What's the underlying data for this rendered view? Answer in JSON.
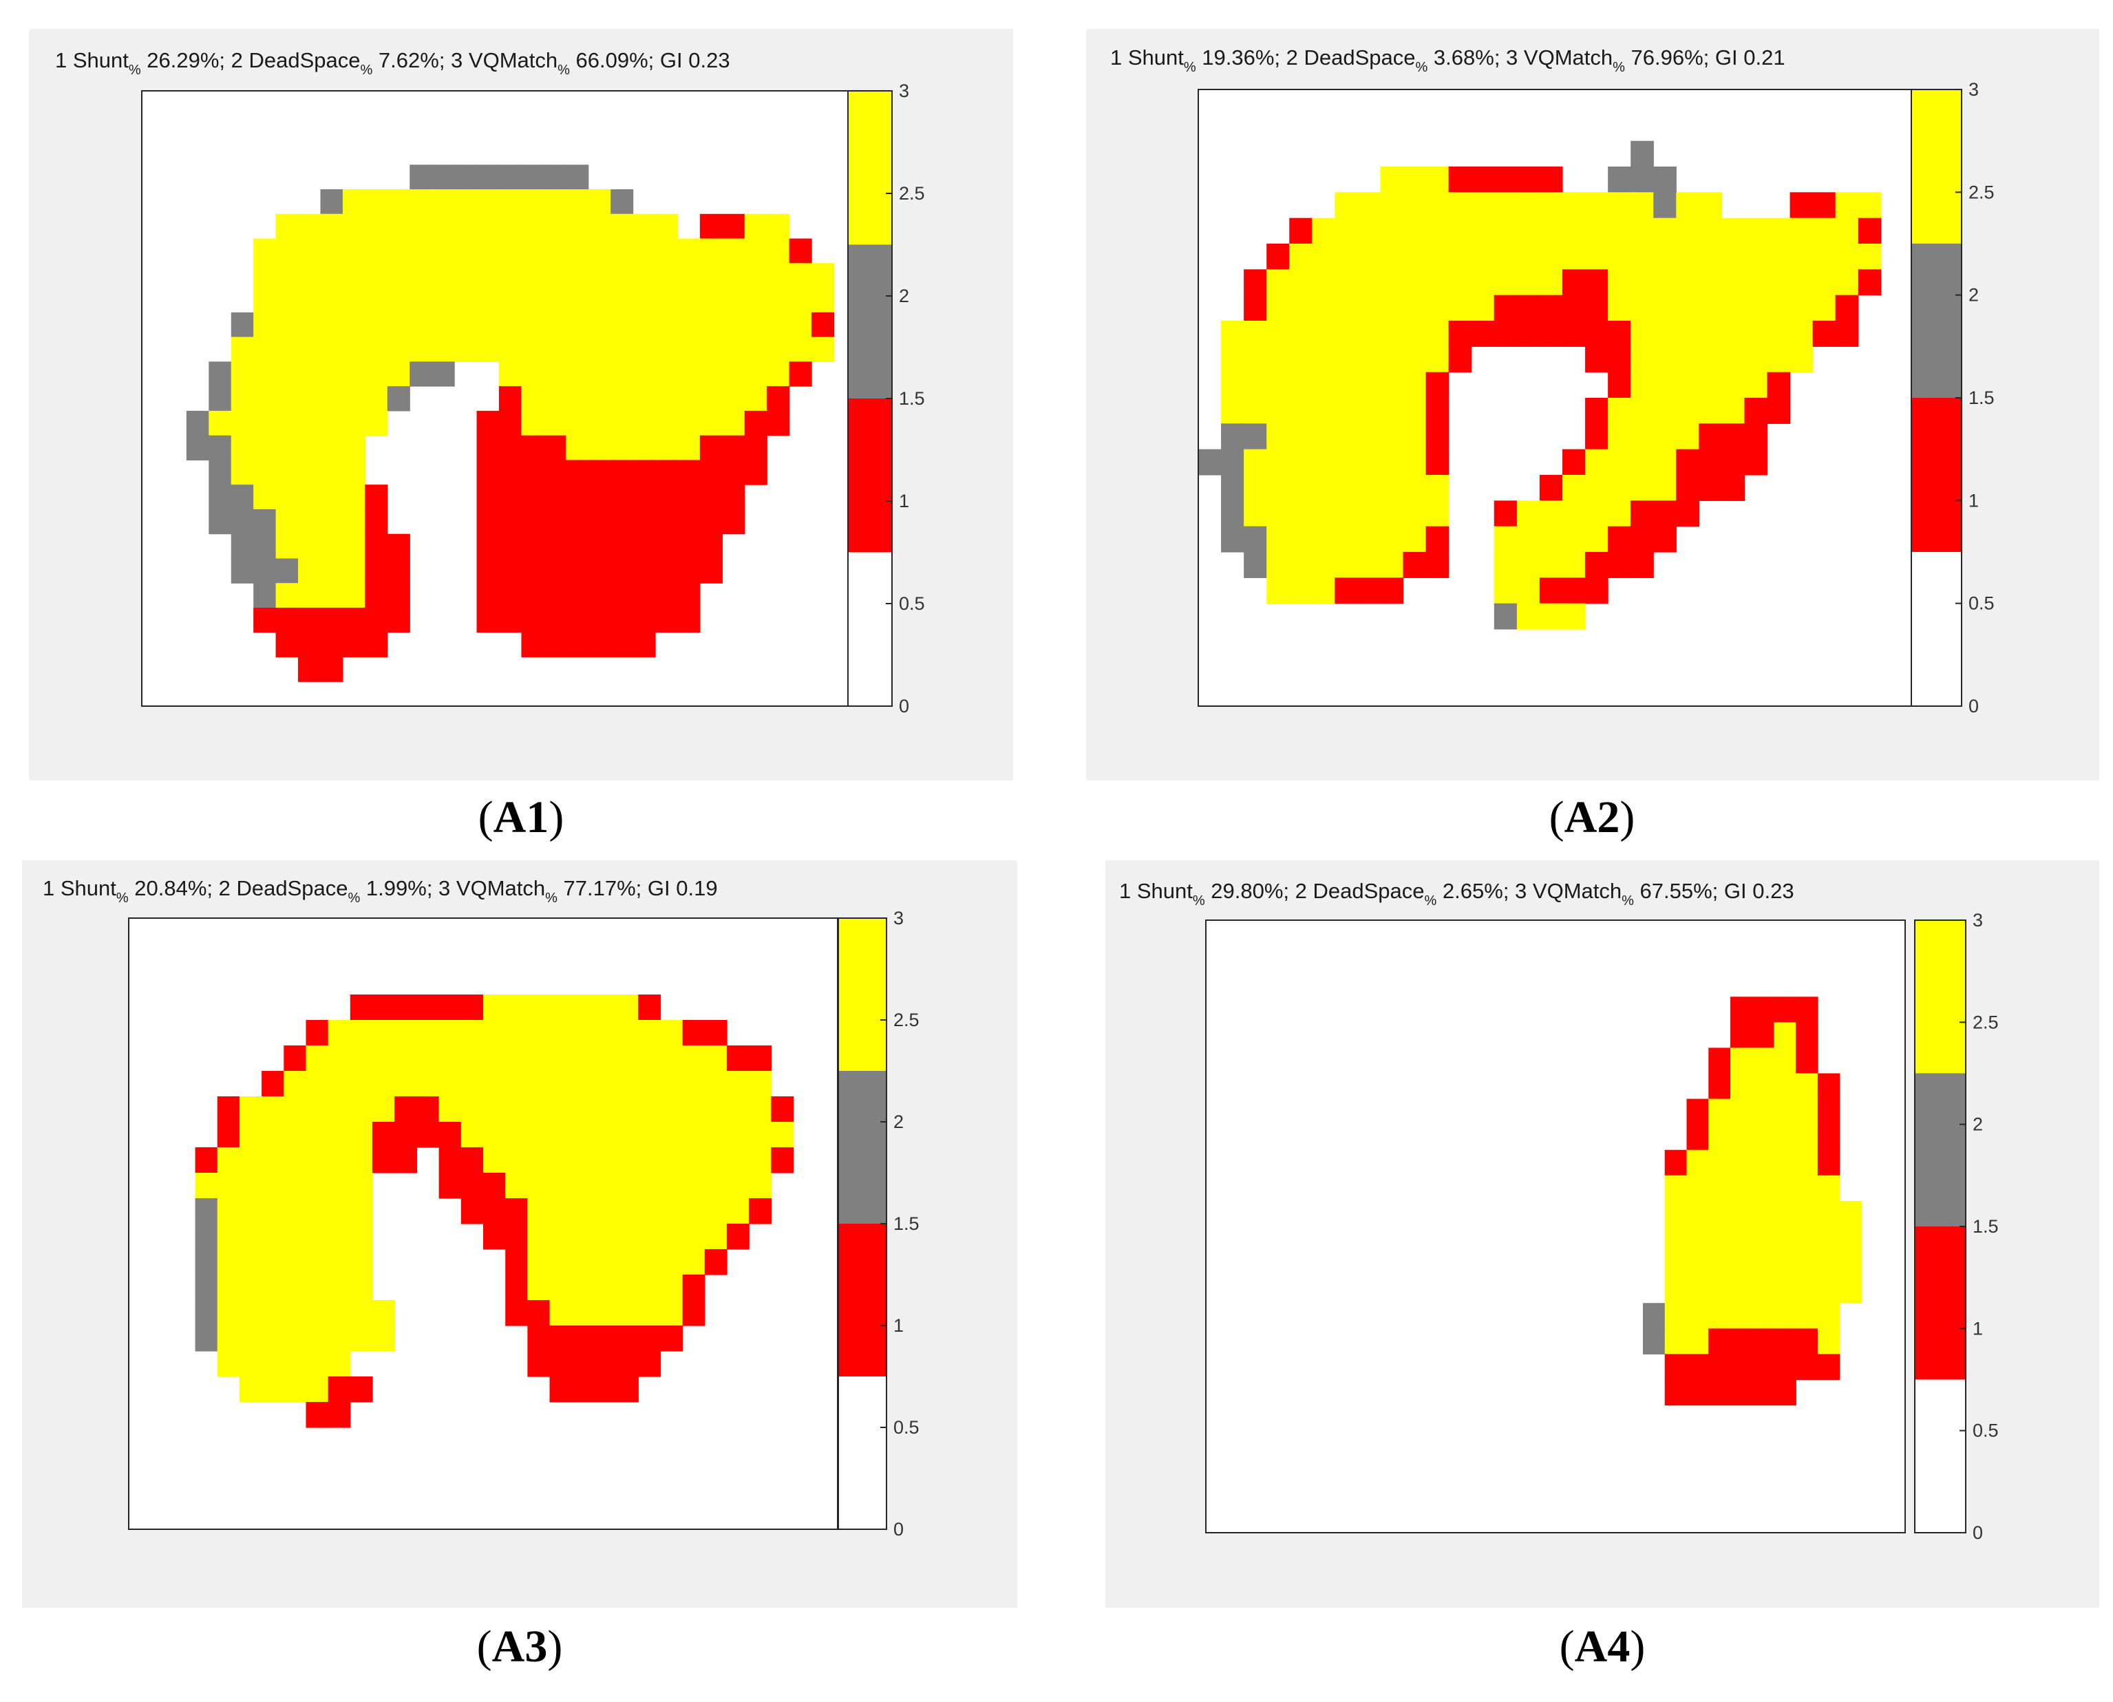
{
  "colors": {
    "white": "#ffffff",
    "red": "#ff0000",
    "gray": "#808080",
    "yellow": "#ffff00"
  },
  "legend": [
    "1 Shunt",
    "2 DeadSpace",
    "3 VQMatch"
  ],
  "chart_data": [
    {
      "type": "heatmap",
      "panel_label": "A1",
      "title": "1 Shunt% 26.29%; 2 DeadSpace% 7.62%; 3 VQMatch% 66.09%; GI 0.23",
      "metrics": {
        "shunt": "26.29%",
        "deadspace": "7.62%",
        "vqmatch": "66.09%",
        "gi": "0.23"
      },
      "clim": [
        0,
        3
      ],
      "colorbar_ticks": [
        "0",
        "0.5",
        "1",
        "1.5",
        "2",
        "2.5",
        "3"
      ],
      "values": [
        "................................",
        "................................",
        "................................",
        "............GGGGGGGG............",
        "........GYYYYYYYYYYYYG..........",
        "......YYYYYYYYYYYYYYYYYY.RRYY...",
        ".....YYYYYYYYYYYYYYYYYYYYYYYYR..",
        ".....YYYYYYYYYYYYYYYYYYYYYYYYYY.",
        ".....YYYYYYYYYYYYYYYYYYYYYYYYYY.",
        "....GYYYYYYYYYYYYYYYYYYYYYYYYYR.",
        "....YYYYYYYYYYYYYYYYYYYYYYYYYYY.",
        "...GYYYYYYYYGG..YYYYYYYYYYYYYR..",
        "...GYYYYYYYG....RYYYYYYYYYYYR...",
        "..GYYYYYYYY....RRYYYYYYYYYYRR...",
        "..GGYYYYYY.....RRRRYYYYYYRRR....",
        "...GYYYYYY.....RRRRRRRRRRRRR....",
        "...GGYYYYYR....RRRRRRRRRRRR.....",
        "...GGGYYYYR....RRRRRRRRRRRR.....",
        "....GGYYYYRR...RRRRRRRRRRR......",
        "....GGGYYYRR...RRRRRRRRRRR......",
        ".....GYYYYRR...RRRRRRRRRR.......",
        ".....RRRRRRR...RRRRRRRRRR.......",
        "......RRRRR......RRRRRR.........",
        ".......RR.......................",
        "................................"
      ]
    },
    {
      "type": "heatmap",
      "panel_label": "A2",
      "title": "1 Shunt% 19.36%; 2 DeadSpace% 3.68%; 3 VQMatch% 76.96%; GI 0.21",
      "metrics": {
        "shunt": "19.36%",
        "deadspace": "3.68%",
        "vqmatch": "76.96%",
        "gi": "0.21"
      },
      "clim": [
        0,
        3
      ],
      "colorbar_ticks": [
        "0",
        "0.5",
        "1",
        "1.5",
        "2",
        "2.5",
        "3"
      ],
      "values": [
        "................................",
        "................................",
        "...................G............",
        "........YYYRRRRR..GGG...........",
        "......YYYYYYYYYYYYYYGYY...RRYY..",
        "....RYYYYYYYYYYYYYYYYYYYYYYYYR..",
        "...RYYYYYYYYYYYYYYYYYYYYYYYYYY..",
        "..RYYYYYYYYYYYYYRRYYYYYYYYYYYR..",
        "..RYYYYYYYYYYRRRRRYYYYYYYYYYR...",
        ".YYYYYYYYYYRRRRRRRRYYYYYYYYRR...",
        ".YYYYYYYYYYR.....RRYYYYYYYY.....",
        ".YYYYYYYYYR.......RYYYYYYR......",
        ".YYYYYYYYYR......RYYYYYYRR......",
        ".GGYYYYYYYR......RYYYYRRR.......",
        "GGYYYYYYYYR.....RYYYYRRRR.......",
        ".GYYYYYYYYY....RYYYYYRRR........",
        ".GYYYYYYYYY..RYYYYYRRR..........",
        ".GGYYYYYYYR..YYYYYRRR...........",
        "..GYYYYYYRR..YYYYRRR............",
        "...YYYRRR....YYRRR..............",
        ".............GYYY...............",
        "................................",
        "................................",
        "................................"
      ]
    },
    {
      "type": "heatmap",
      "panel_label": "A3",
      "title": "1 Shunt% 20.84%; 2 DeadSpace% 1.99%; 3 VQMatch% 77.17%; GI 0.19",
      "metrics": {
        "shunt": "20.84%",
        "deadspace": "1.99%",
        "vqmatch": "77.17%",
        "gi": "0.19"
      },
      "clim": [
        0,
        3
      ],
      "colorbar_ticks": [
        "0",
        "0.5",
        "1",
        "1.5",
        "2",
        "2.5",
        "3"
      ],
      "values": [
        "................................",
        "................................",
        "................................",
        "..........RRRRRRYYYYYYYR........",
        "........RYYYYYYYYYYYYYYYYRR.....",
        ".......RYYYYYYYYYYYYYYYYYYYRR...",
        "......RYYYYYYYYYYYYYYYYYYYYYY...",
        "....RYYYYYYYRRYYYYYYYYYYYYYYYR..",
        "....RYYYYYYRRRRYYYYYYYYYYYYYYY..",
        "...RYYYYYYYRR.RRYYYYYYYYYYYYYR..",
        "...YYYYYYYY...RRRYYYYYYYYYYYY...",
        "...GYYYYYYY....RRRYYYYYYYYYYR...",
        "...GYYYYYYY.....RRYYYYYYYYYR....",
        "...GYYYYYYY......RYYYYYYYYR.....",
        "...GYYYYYYY......RYYYYYYYR......",
        "...GYYYYYYYY.....RRYYYYYYR......",
        "...GYYYYYYYY......RRRRRRR.......",
        "....YYYYYY........RRRRRR........",
        ".....YYYYRR........RRRR.........",
        "........RR......................",
        "................................",
        "................................",
        "................................",
        "................................"
      ]
    },
    {
      "type": "heatmap",
      "panel_label": "A4",
      "title": "1 Shunt% 29.80%; 2 DeadSpace% 2.65%; 3 VQMatch% 67.55%; GI 0.23",
      "metrics": {
        "shunt": "29.80%",
        "deadspace": "2.65%",
        "vqmatch": "67.55%",
        "gi": "0.23"
      },
      "clim": [
        0,
        3
      ],
      "colorbar_ticks": [
        "0",
        "0.5",
        "1",
        "1.5",
        "2",
        "2.5",
        "3"
      ],
      "values": [
        "................................",
        "................................",
        "................................",
        "........................RRRR....",
        "........................RRYR....",
        ".......................RYYYR....",
        ".......................RYYYYR...",
        "......................RYYYYYR...",
        "......................RYYYYYR...",
        ".....................RYYYYYYR...",
        ".....................YYYYYYYY...",
        ".....................YYYYYYYYY..",
        ".....................YYYYYYYYY..",
        ".....................YYYYYYYYY..",
        ".....................YYYYYYYYY..",
        "....................GYYYYYYYY...",
        "....................GYYRRRRRY...",
        ".....................RRRRRRRR...",
        ".....................RRRRRR.....",
        "................................",
        "................................",
        "................................",
        "................................",
        "................................"
      ]
    }
  ]
}
